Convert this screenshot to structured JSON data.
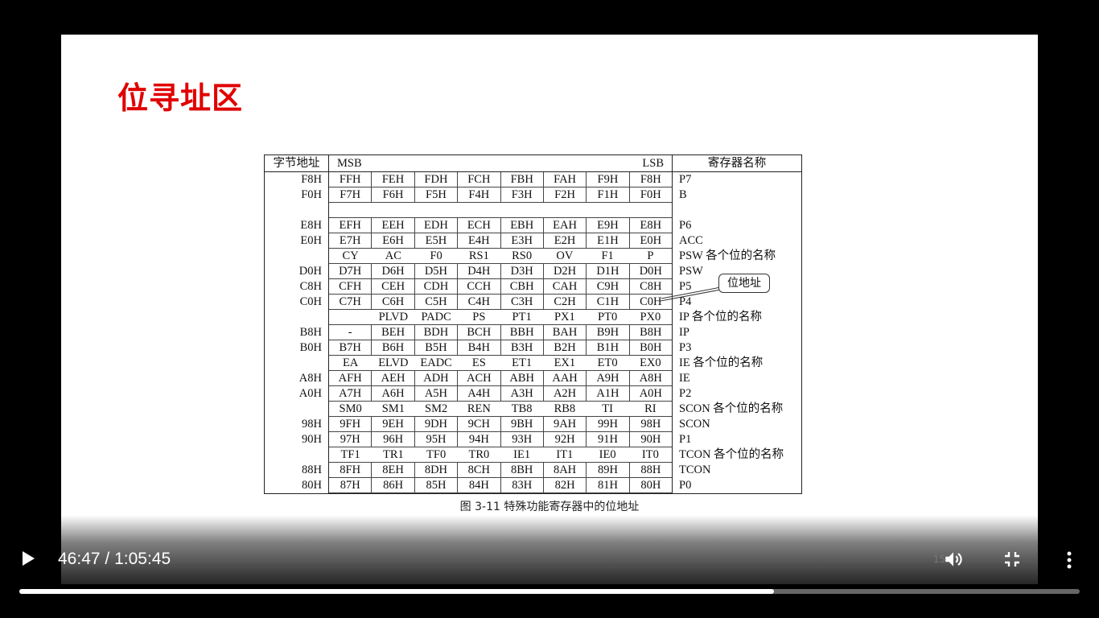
{
  "slide": {
    "title": "位寻址区",
    "page_number": "15",
    "caption": "图 3-11 特殊功能寄存器中的位地址",
    "callout": "位地址",
    "title_color": "#e00000"
  },
  "table": {
    "header": {
      "addr": "字节地址",
      "msb": "MSB",
      "lsb": "LSB",
      "name": "寄存器名称"
    },
    "rows": [
      {
        "addr": "F8H",
        "bits": [
          "FFH",
          "FEH",
          "FDH",
          "FCH",
          "FBH",
          "FAH",
          "F9H",
          "F8H"
        ],
        "name": "P7"
      },
      {
        "addr": "F0H",
        "bits": [
          "F7H",
          "F6H",
          "F5H",
          "F4H",
          "F3H",
          "F2H",
          "F1H",
          "F0H"
        ],
        "name": "B"
      },
      {
        "addr": "",
        "bits": null,
        "name": ""
      },
      {
        "addr": "E8H",
        "bits": [
          "EFH",
          "EEH",
          "EDH",
          "ECH",
          "EBH",
          "EAH",
          "E9H",
          "E8H"
        ],
        "name": "P6"
      },
      {
        "addr": "E0H",
        "bits": [
          "E7H",
          "E6H",
          "E5H",
          "E4H",
          "E3H",
          "E2H",
          "E1H",
          "E0H"
        ],
        "name": "ACC"
      },
      {
        "addr": "",
        "bits": [
          "CY",
          "AC",
          "F0",
          "RS1",
          "RS0",
          "OV",
          "F1",
          "P"
        ],
        "name": "PSW 各个位的名称",
        "bitnames": true
      },
      {
        "addr": "D0H",
        "bits": [
          "D7H",
          "D6H",
          "D5H",
          "D4H",
          "D3H",
          "D2H",
          "D1H",
          "D0H"
        ],
        "name": "PSW"
      },
      {
        "addr": "C8H",
        "bits": [
          "CFH",
          "CEH",
          "CDH",
          "CCH",
          "CBH",
          "CAH",
          "C9H",
          "C8H"
        ],
        "name": "P5"
      },
      {
        "addr": "C0H",
        "bits": [
          "C7H",
          "C6H",
          "C5H",
          "C4H",
          "C3H",
          "C2H",
          "C1H",
          "C0H"
        ],
        "name": "P4"
      },
      {
        "addr": "",
        "bits": [
          "",
          "PLVD",
          "PADC",
          "PS",
          "PT1",
          "PX1",
          "PT0",
          "PX0"
        ],
        "name": "IP 各个位的名称",
        "bitnames": true
      },
      {
        "addr": "B8H",
        "bits": [
          "-",
          "BEH",
          "BDH",
          "BCH",
          "BBH",
          "BAH",
          "B9H",
          "B8H"
        ],
        "name": "IP"
      },
      {
        "addr": "B0H",
        "bits": [
          "B7H",
          "B6H",
          "B5H",
          "B4H",
          "B3H",
          "B2H",
          "B1H",
          "B0H"
        ],
        "name": "P3"
      },
      {
        "addr": "",
        "bits": [
          "EA",
          "ELVD",
          "EADC",
          "ES",
          "ET1",
          "EX1",
          "ET0",
          "EX0"
        ],
        "name": "IE 各个位的名称",
        "bitnames": true
      },
      {
        "addr": "A8H",
        "bits": [
          "AFH",
          "AEH",
          "ADH",
          "ACH",
          "ABH",
          "AAH",
          "A9H",
          "A8H"
        ],
        "name": "IE"
      },
      {
        "addr": "A0H",
        "bits": [
          "A7H",
          "A6H",
          "A5H",
          "A4H",
          "A3H",
          "A2H",
          "A1H",
          "A0H"
        ],
        "name": "P2"
      },
      {
        "addr": "",
        "bits": [
          "SM0",
          "SM1",
          "SM2",
          "REN",
          "TB8",
          "RB8",
          "TI",
          "RI"
        ],
        "name": "SCON 各个位的名称",
        "bitnames": true
      },
      {
        "addr": "98H",
        "bits": [
          "9FH",
          "9EH",
          "9DH",
          "9CH",
          "9BH",
          "9AH",
          "99H",
          "98H"
        ],
        "name": "SCON"
      },
      {
        "addr": "90H",
        "bits": [
          "97H",
          "96H",
          "95H",
          "94H",
          "93H",
          "92H",
          "91H",
          "90H"
        ],
        "name": "P1"
      },
      {
        "addr": "",
        "bits": [
          "TF1",
          "TR1",
          "TF0",
          "TR0",
          "IE1",
          "IT1",
          "IE0",
          "IT0"
        ],
        "name": "TCON 各个位的名称",
        "bitnames": true
      },
      {
        "addr": "88H",
        "bits": [
          "8FH",
          "8EH",
          "8DH",
          "8CH",
          "8BH",
          "8AH",
          "89H",
          "88H"
        ],
        "name": "TCON"
      },
      {
        "addr": "80H",
        "bits": [
          "87H",
          "86H",
          "85H",
          "84H",
          "83H",
          "82H",
          "81H",
          "80H"
        ],
        "name": "P0"
      }
    ]
  },
  "player": {
    "current_time": "46:47",
    "duration": "1:05:45",
    "time_separator": " / ",
    "progress": 0.712,
    "icons": [
      "play-icon",
      "volume-icon",
      "exit-fullscreen-icon",
      "more-options-icon"
    ]
  }
}
